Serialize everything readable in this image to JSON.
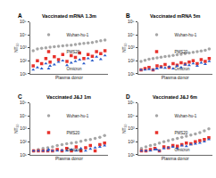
{
  "chart_data": [
    {
      "type": "scatter",
      "panel": "A",
      "title": "Vaccinated mRNA 1.3m",
      "x_label": "Plasma donor",
      "y_label": "NT₅₀",
      "categories": [
        null,
        null,
        null,
        null,
        null,
        null,
        null,
        null,
        null,
        null,
        null,
        null,
        null,
        null,
        null,
        null,
        null,
        null
      ],
      "log": "y",
      "ylim": [
        10,
        100000
      ],
      "yticks": [
        {
          "value": 10,
          "label": "10¹"
        },
        {
          "value": 100,
          "label": "10²"
        },
        {
          "value": 1000,
          "label": "10³"
        },
        {
          "value": 10000,
          "label": "10⁴"
        },
        {
          "value": 100000,
          "label": "10⁵"
        }
      ],
      "tick_labels": "y",
      "legend": "upper left",
      "series": [
        {
          "name": "Wuhan-hu-1",
          "color": "#a6a6a6",
          "marker": "circle",
          "values": [
            600,
            800,
            900,
            1000,
            1100,
            1200,
            1300,
            1400,
            1500,
            1600,
            1800,
            2000,
            2200,
            2400,
            2600,
            3000,
            3500,
            4000
          ]
        },
        {
          "name": "PMS20",
          "color": "#e8312b",
          "marker": "square",
          "values": [
            40,
            100,
            60,
            150,
            80,
            200,
            120,
            300,
            90,
            250,
            180,
            400,
            150,
            300,
            220,
            500,
            350,
            600
          ]
        },
        {
          "name": "Omicron",
          "color": "#2a5cc9",
          "marker": "triangle-up",
          "values": [
            20,
            30,
            25,
            60,
            40,
            50,
            80,
            100,
            45,
            70,
            90,
            120,
            60,
            150,
            100,
            200,
            130,
            250
          ]
        }
      ]
    },
    {
      "type": "scatter",
      "panel": "B",
      "title": "Vaccinated mRNA 5m",
      "x_label": "Plasma donor",
      "y_label": "NT₅₀",
      "categories": [
        null,
        null,
        null,
        null,
        null,
        null,
        null,
        null,
        null,
        null,
        null,
        null,
        null,
        null,
        null,
        null,
        null,
        null
      ],
      "log": "y",
      "ylim": [
        10,
        100000
      ],
      "yticks": [
        {
          "value": 10,
          "label": "10¹"
        },
        {
          "value": 100,
          "label": "10²"
        },
        {
          "value": 1000,
          "label": "10³"
        },
        {
          "value": 10000,
          "label": "10⁴"
        },
        {
          "value": 100000,
          "label": "10⁵"
        }
      ],
      "tick_labels": "y",
      "legend": "upper left",
      "series": [
        {
          "name": "Wuhan-hu-1",
          "color": "#a6a6a6",
          "marker": "circle",
          "values": [
            90,
            110,
            130,
            150,
            170,
            190,
            210,
            230,
            260,
            290,
            320,
            360,
            400,
            450,
            500,
            560,
            650,
            800
          ]
        },
        {
          "name": "PMS20",
          "color": "#e8312b",
          "marker": "square",
          "values": [
            20,
            25,
            30,
            20,
            40,
            35,
            50,
            30,
            60,
            45,
            70,
            55,
            80,
            100,
            60,
            120,
            90,
            150
          ]
        },
        {
          "name": "Omicron",
          "color": "#2a5cc9",
          "marker": "triangle-up",
          "values": [
            20,
            20,
            22,
            20,
            25,
            30,
            28,
            35,
            25,
            40,
            30,
            50,
            45,
            60,
            40,
            70,
            55,
            90
          ]
        }
      ]
    },
    {
      "type": "scatter",
      "panel": "C",
      "title": "Vaccinated J&J 1m",
      "x_label": "Plasma donor",
      "y_label": "NT₅₀",
      "categories": [
        null,
        null,
        null,
        null,
        null,
        null,
        null,
        null,
        null,
        null,
        null,
        null,
        null,
        null,
        null,
        null
      ],
      "log": "y",
      "ylim": [
        10,
        100000
      ],
      "yticks": [
        {
          "value": 10,
          "label": "10¹"
        },
        {
          "value": 100,
          "label": "10²"
        },
        {
          "value": 1000,
          "label": "10³"
        },
        {
          "value": 10000,
          "label": "10⁴"
        },
        {
          "value": 100000,
          "label": "10⁵"
        }
      ],
      "tick_labels": "y",
      "legend": "upper left",
      "series": [
        {
          "name": "Wuhan-hu-1",
          "color": "#a6a6a6",
          "marker": "circle",
          "values": [
            20,
            25,
            30,
            35,
            40,
            50,
            60,
            70,
            80,
            90,
            110,
            130,
            150,
            180,
            220,
            300
          ]
        },
        {
          "name": "PMS20",
          "color": "#e8312b",
          "marker": "square",
          "values": [
            20,
            20,
            20,
            20,
            20,
            25,
            20,
            30,
            20,
            40,
            20,
            35,
            50,
            20,
            60,
            80
          ]
        },
        {
          "name": "Omicron",
          "color": "#2a5cc9",
          "marker": "triangle-up",
          "values": [
            20,
            20,
            20,
            20,
            20,
            20,
            22,
            20,
            25,
            20,
            30,
            20,
            28,
            35,
            40,
            50
          ]
        }
      ]
    },
    {
      "type": "scatter",
      "panel": "D",
      "title": "Vaccinated J&J 6m",
      "x_label": "Plasma donor",
      "y_label": "NT₅₀",
      "categories": [
        null,
        null,
        null,
        null,
        null,
        null,
        null,
        null,
        null,
        null,
        null,
        null,
        null,
        null,
        null,
        null
      ],
      "log": "y",
      "ylim": [
        10,
        100000
      ],
      "yticks": [
        {
          "value": 10,
          "label": "10¹"
        },
        {
          "value": 100,
          "label": "10²"
        },
        {
          "value": 1000,
          "label": "10³"
        },
        {
          "value": 10000,
          "label": "10⁴"
        },
        {
          "value": 100000,
          "label": "10⁵"
        }
      ],
      "tick_labels": "y",
      "legend": "upper left",
      "series": [
        {
          "name": "Wuhan-hu-1",
          "color": "#a6a6a6",
          "marker": "circle",
          "values": [
            30,
            40,
            50,
            60,
            80,
            100,
            120,
            150,
            180,
            220,
            270,
            330,
            400,
            500,
            700,
            1000
          ]
        },
        {
          "name": "PMS20",
          "color": "#e8312b",
          "marker": "square",
          "values": [
            20,
            20,
            25,
            30,
            20,
            40,
            35,
            50,
            45,
            60,
            80,
            70,
            100,
            120,
            150,
            200
          ]
        },
        {
          "name": "Omicron",
          "color": "#2a5cc9",
          "marker": "triangle-up",
          "values": [
            20,
            20,
            20,
            25,
            20,
            30,
            35,
            40,
            30,
            50,
            45,
            60,
            70,
            80,
            100,
            150
          ]
        }
      ]
    }
  ]
}
